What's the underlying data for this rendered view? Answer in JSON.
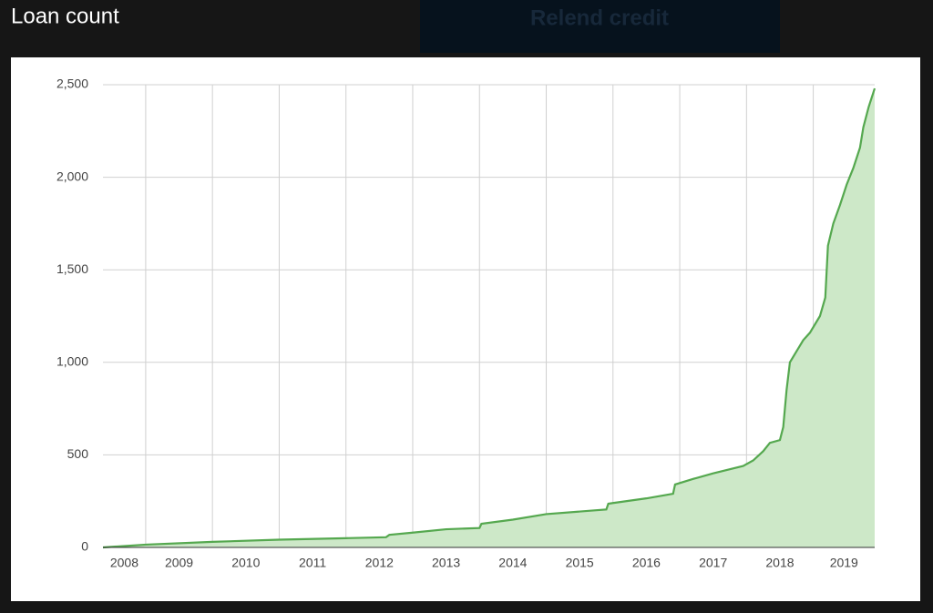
{
  "background_button": {
    "label": "Relend credit"
  },
  "chart_data": {
    "type": "area",
    "title": "Loan count",
    "x": [
      2008.36,
      2009.0,
      2010.0,
      2011.0,
      2012.0,
      2012.6,
      2012.65,
      2013.0,
      2013.5,
      2014.0,
      2014.03,
      2014.5,
      2015.0,
      2015.9,
      2015.93,
      2016.0,
      2016.5,
      2016.9,
      2016.93,
      2017.2,
      2017.5,
      2017.95,
      2018.1,
      2018.25,
      2018.35,
      2018.5,
      2018.55,
      2018.6,
      2018.65,
      2018.75,
      2018.85,
      2018.95,
      2019.1,
      2019.18,
      2019.22,
      2019.3,
      2019.4,
      2019.5,
      2019.6,
      2019.7,
      2019.75,
      2019.83,
      2019.92
    ],
    "series": [
      {
        "color": "#55a84f",
        "fill_color": "#cde8c8",
        "values": [
          0,
          15,
          30,
          42,
          50,
          55,
          68,
          80,
          98,
          105,
          128,
          150,
          180,
          205,
          236,
          240,
          265,
          290,
          340,
          370,
          400,
          440,
          470,
          520,
          565,
          580,
          650,
          850,
          1000,
          1060,
          1120,
          1160,
          1250,
          1350,
          1630,
          1750,
          1850,
          1960,
          2050,
          2160,
          2270,
          2380,
          2480
        ]
      }
    ],
    "xlim": [
      2008.36,
      2019.92
    ],
    "xticks": [
      2008,
      2009,
      2010,
      2011,
      2012,
      2013,
      2014,
      2015,
      2016,
      2017,
      2018,
      2019
    ],
    "ylim": [
      0,
      2500
    ],
    "yticks": [
      0,
      500,
      {
        "value": 1000,
        "label": "1,000"
      },
      {
        "value": 1500,
        "label": "1,500"
      },
      {
        "value": 2000,
        "label": "2,000"
      },
      {
        "value": 2500,
        "label": "2,500"
      }
    ],
    "grid": true
  }
}
